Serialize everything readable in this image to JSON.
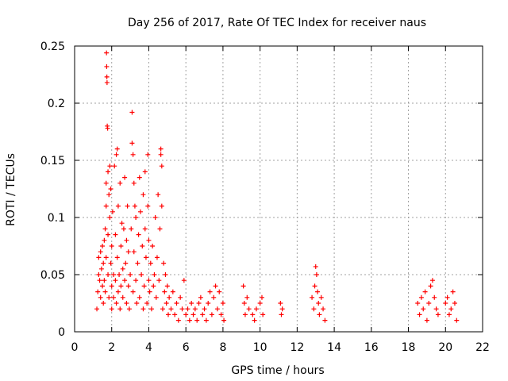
{
  "chart_data": {
    "type": "scatter",
    "title": "Day 256 of 2017, Rate Of TEC Index for receiver naus",
    "xlabel": "GPS time / hours",
    "ylabel": "ROTI / TECUs",
    "xlim": [
      0,
      22
    ],
    "ylim": [
      0,
      0.25
    ],
    "x_ticks": [
      0,
      2,
      4,
      6,
      8,
      10,
      12,
      14,
      16,
      18,
      20,
      22
    ],
    "y_ticks": [
      0,
      0.05,
      0.1,
      0.15,
      0.2,
      0.25
    ],
    "x_tick_labels": [
      "0",
      "2",
      "4",
      "6",
      "8",
      "10",
      "12",
      "14",
      "16",
      "18",
      "20",
      "22"
    ],
    "y_tick_labels": [
      "0",
      "0.05",
      "0.1",
      "0.15",
      "0.2",
      "0.25"
    ],
    "grid": true,
    "marker": "+",
    "color": "#ff0000",
    "series": [
      {
        "name": "ROTI",
        "points": [
          [
            1.2,
            0.02
          ],
          [
            1.25,
            0.035
          ],
          [
            1.3,
            0.05
          ],
          [
            1.3,
            0.065
          ],
          [
            1.35,
            0.045
          ],
          [
            1.4,
            0.03
          ],
          [
            1.4,
            0.07
          ],
          [
            1.45,
            0.055
          ],
          [
            1.5,
            0.04
          ],
          [
            1.5,
            0.075
          ],
          [
            1.55,
            0.025
          ],
          [
            1.55,
            0.06
          ],
          [
            1.6,
            0.08
          ],
          [
            1.6,
            0.045
          ],
          [
            1.65,
            0.09
          ],
          [
            1.65,
            0.035
          ],
          [
            1.7,
            0.11
          ],
          [
            1.7,
            0.065
          ],
          [
            1.7,
            0.13
          ],
          [
            1.72,
            0.244
          ],
          [
            1.73,
            0.232
          ],
          [
            1.74,
            0.223
          ],
          [
            1.75,
            0.218
          ],
          [
            1.76,
            0.18
          ],
          [
            1.78,
            0.178
          ],
          [
            1.8,
            0.14
          ],
          [
            1.8,
            0.085
          ],
          [
            1.8,
            0.05
          ],
          [
            1.85,
            0.12
          ],
          [
            1.85,
            0.03
          ],
          [
            1.9,
            0.1
          ],
          [
            1.9,
            0.145
          ],
          [
            1.95,
            0.06
          ],
          [
            1.95,
            0.125
          ],
          [
            2.0,
            0.04
          ],
          [
            2.0,
            0.075
          ],
          [
            2.0,
            0.02
          ],
          [
            2.05,
            0.105
          ],
          [
            2.1,
            0.05
          ],
          [
            2.1,
            0.03
          ],
          [
            2.15,
            0.145
          ],
          [
            2.2,
            0.085
          ],
          [
            2.2,
            0.045
          ],
          [
            2.25,
            0.155
          ],
          [
            2.25,
            0.025
          ],
          [
            2.3,
            0.16
          ],
          [
            2.3,
            0.065
          ],
          [
            2.35,
            0.11
          ],
          [
            2.35,
            0.035
          ],
          [
            2.4,
            0.05
          ],
          [
            2.45,
            0.13
          ],
          [
            2.45,
            0.02
          ],
          [
            2.5,
            0.075
          ],
          [
            2.5,
            0.04
          ],
          [
            2.55,
            0.095
          ],
          [
            2.6,
            0.055
          ],
          [
            2.6,
            0.03
          ],
          [
            2.65,
            0.09
          ],
          [
            2.7,
            0.045
          ],
          [
            2.7,
            0.135
          ],
          [
            2.75,
            0.06
          ],
          [
            2.8,
            0.025
          ],
          [
            2.8,
            0.08
          ],
          [
            2.85,
            0.11
          ],
          [
            2.9,
            0.04
          ],
          [
            2.9,
            0.07
          ],
          [
            2.95,
            0.02
          ],
          [
            3.0,
            0.05
          ],
          [
            3.05,
            0.09
          ],
          [
            3.1,
            0.192
          ],
          [
            3.1,
            0.165
          ],
          [
            3.15,
            0.155
          ],
          [
            3.15,
            0.035
          ],
          [
            3.2,
            0.13
          ],
          [
            3.2,
            0.07
          ],
          [
            3.25,
            0.11
          ],
          [
            3.3,
            0.045
          ],
          [
            3.3,
            0.1
          ],
          [
            3.35,
            0.025
          ],
          [
            3.4,
            0.06
          ],
          [
            3.45,
            0.085
          ],
          [
            3.5,
            0.135
          ],
          [
            3.5,
            0.03
          ],
          [
            3.55,
            0.105
          ],
          [
            3.6,
            0.05
          ],
          [
            3.65,
            0.075
          ],
          [
            3.7,
            0.12
          ],
          [
            3.7,
            0.02
          ],
          [
            3.75,
            0.04
          ],
          [
            3.8,
            0.14
          ],
          [
            3.8,
            0.09
          ],
          [
            3.85,
            0.065
          ],
          [
            3.9,
            0.025
          ],
          [
            3.95,
            0.155
          ],
          [
            3.95,
            0.11
          ],
          [
            4.0,
            0.045
          ],
          [
            4.0,
            0.08
          ],
          [
            4.05,
            0.035
          ],
          [
            4.1,
            0.06
          ],
          [
            4.15,
            0.02
          ],
          [
            4.2,
            0.075
          ],
          [
            4.25,
            0.04
          ],
          [
            4.3,
            0.05
          ],
          [
            4.35,
            0.1
          ],
          [
            4.4,
            0.03
          ],
          [
            4.45,
            0.065
          ],
          [
            4.5,
            0.12
          ],
          [
            4.55,
            0.045
          ],
          [
            4.6,
            0.09
          ],
          [
            4.65,
            0.16
          ],
          [
            4.65,
            0.155
          ],
          [
            4.7,
            0.145
          ],
          [
            4.7,
            0.11
          ],
          [
            4.75,
            0.02
          ],
          [
            4.8,
            0.06
          ],
          [
            4.85,
            0.035
          ],
          [
            4.9,
            0.05
          ],
          [
            4.95,
            0.025
          ],
          [
            5.0,
            0.04
          ],
          [
            5.05,
            0.015
          ],
          [
            5.1,
            0.03
          ],
          [
            5.2,
            0.02
          ],
          [
            5.3,
            0.035
          ],
          [
            5.4,
            0.015
          ],
          [
            5.5,
            0.025
          ],
          [
            5.6,
            0.01
          ],
          [
            5.7,
            0.03
          ],
          [
            5.8,
            0.02
          ],
          [
            5.9,
            0.045
          ],
          [
            6.0,
            0.015
          ],
          [
            6.1,
            0.02
          ],
          [
            6.2,
            0.01
          ],
          [
            6.3,
            0.025
          ],
          [
            6.4,
            0.015
          ],
          [
            6.5,
            0.02
          ],
          [
            6.6,
            0.01
          ],
          [
            6.7,
            0.025
          ],
          [
            6.8,
            0.03
          ],
          [
            6.9,
            0.015
          ],
          [
            7.0,
            0.02
          ],
          [
            7.1,
            0.01
          ],
          [
            7.2,
            0.025
          ],
          [
            7.3,
            0.035
          ],
          [
            7.4,
            0.015
          ],
          [
            7.5,
            0.03
          ],
          [
            7.6,
            0.04
          ],
          [
            7.7,
            0.02
          ],
          [
            7.8,
            0.035
          ],
          [
            7.9,
            0.015
          ],
          [
            8.0,
            0.025
          ],
          [
            8.05,
            0.01
          ],
          [
            9.1,
            0.04
          ],
          [
            9.15,
            0.025
          ],
          [
            9.2,
            0.015
          ],
          [
            9.3,
            0.03
          ],
          [
            9.4,
            0.02
          ],
          [
            9.6,
            0.015
          ],
          [
            9.7,
            0.01
          ],
          [
            9.8,
            0.02
          ],
          [
            10.0,
            0.025
          ],
          [
            10.1,
            0.03
          ],
          [
            10.15,
            0.015
          ],
          [
            11.1,
            0.025
          ],
          [
            11.15,
            0.015
          ],
          [
            11.2,
            0.02
          ],
          [
            12.8,
            0.03
          ],
          [
            12.9,
            0.02
          ],
          [
            12.95,
            0.04
          ],
          [
            13.0,
            0.057
          ],
          [
            13.05,
            0.05
          ],
          [
            13.1,
            0.035
          ],
          [
            13.15,
            0.025
          ],
          [
            13.2,
            0.015
          ],
          [
            13.3,
            0.03
          ],
          [
            13.4,
            0.02
          ],
          [
            13.5,
            0.01
          ],
          [
            18.5,
            0.025
          ],
          [
            18.6,
            0.015
          ],
          [
            18.7,
            0.03
          ],
          [
            18.8,
            0.02
          ],
          [
            18.9,
            0.035
          ],
          [
            19.0,
            0.01
          ],
          [
            19.1,
            0.025
          ],
          [
            19.2,
            0.04
          ],
          [
            19.3,
            0.045
          ],
          [
            19.4,
            0.03
          ],
          [
            19.5,
            0.02
          ],
          [
            19.6,
            0.015
          ],
          [
            20.0,
            0.025
          ],
          [
            20.1,
            0.03
          ],
          [
            20.2,
            0.015
          ],
          [
            20.3,
            0.02
          ],
          [
            20.4,
            0.035
          ],
          [
            20.5,
            0.025
          ],
          [
            20.6,
            0.01
          ]
        ]
      }
    ]
  }
}
